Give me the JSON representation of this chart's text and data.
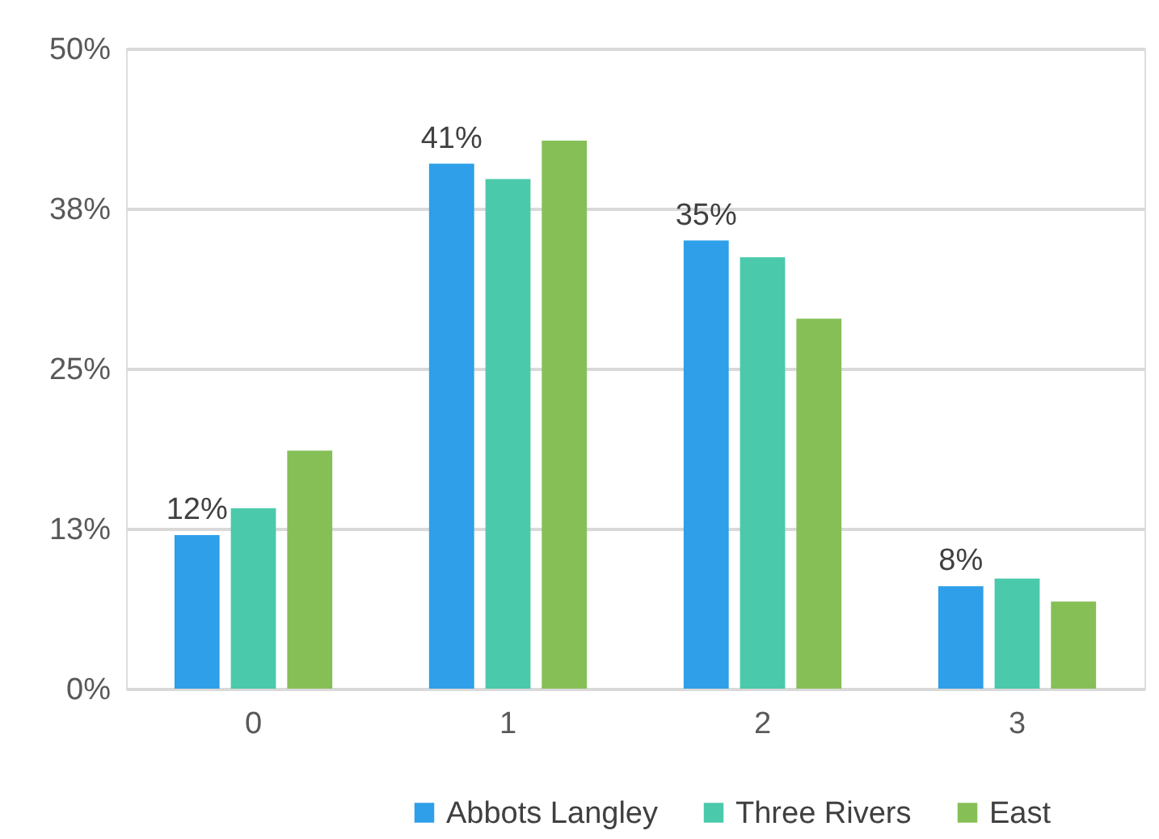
{
  "chart_data": {
    "type": "bar",
    "categories": [
      "0",
      "1",
      "2",
      "3"
    ],
    "series": [
      {
        "name": "Abbots Langley",
        "color": "#2e9fe8",
        "values": [
          12,
          41,
          35,
          8
        ],
        "value_labels": [
          "12%",
          "41%",
          "35%",
          "8%"
        ]
      },
      {
        "name": "Three Rivers",
        "color": "#4bc9ab",
        "values": [
          14.1,
          39.8,
          33.7,
          8.6
        ]
      },
      {
        "name": "East",
        "color": "#86bf56",
        "values": [
          18.6,
          42.8,
          28.9,
          6.8
        ]
      }
    ],
    "ylim": [
      0,
      50
    ],
    "yticks": [
      {
        "value": 0,
        "label": "0%"
      },
      {
        "value": 12.5,
        "label": "13%"
      },
      {
        "value": 25,
        "label": "25%"
      },
      {
        "value": 37.5,
        "label": "38%"
      },
      {
        "value": 50,
        "label": "50%"
      }
    ],
    "grid": "y",
    "legend": "bottom right"
  }
}
